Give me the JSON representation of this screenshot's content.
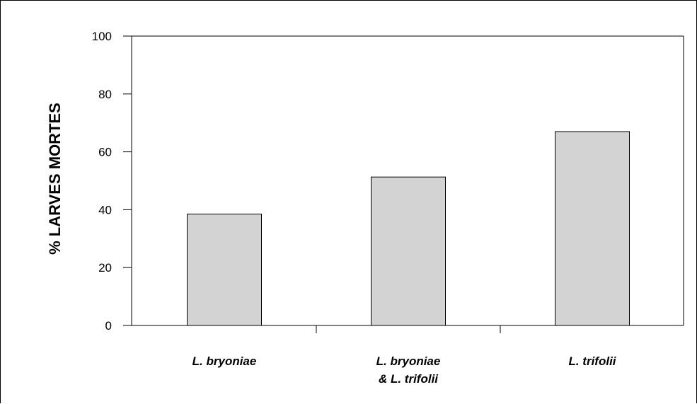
{
  "chart_data": {
    "type": "bar",
    "ylabel": "% LARVES MORTES",
    "xlabel": "",
    "categories": [
      [
        "L. bryoniae"
      ],
      [
        "L. bryoniae",
        "& L. trifolii"
      ],
      [
        "L. trifolii"
      ]
    ],
    "values": [
      38.5,
      51.3,
      67
    ],
    "ylim": [
      0,
      100
    ],
    "yticks": [
      0,
      20,
      40,
      60,
      80,
      100
    ],
    "grid": false,
    "bar_color": "#d3d3d3"
  }
}
